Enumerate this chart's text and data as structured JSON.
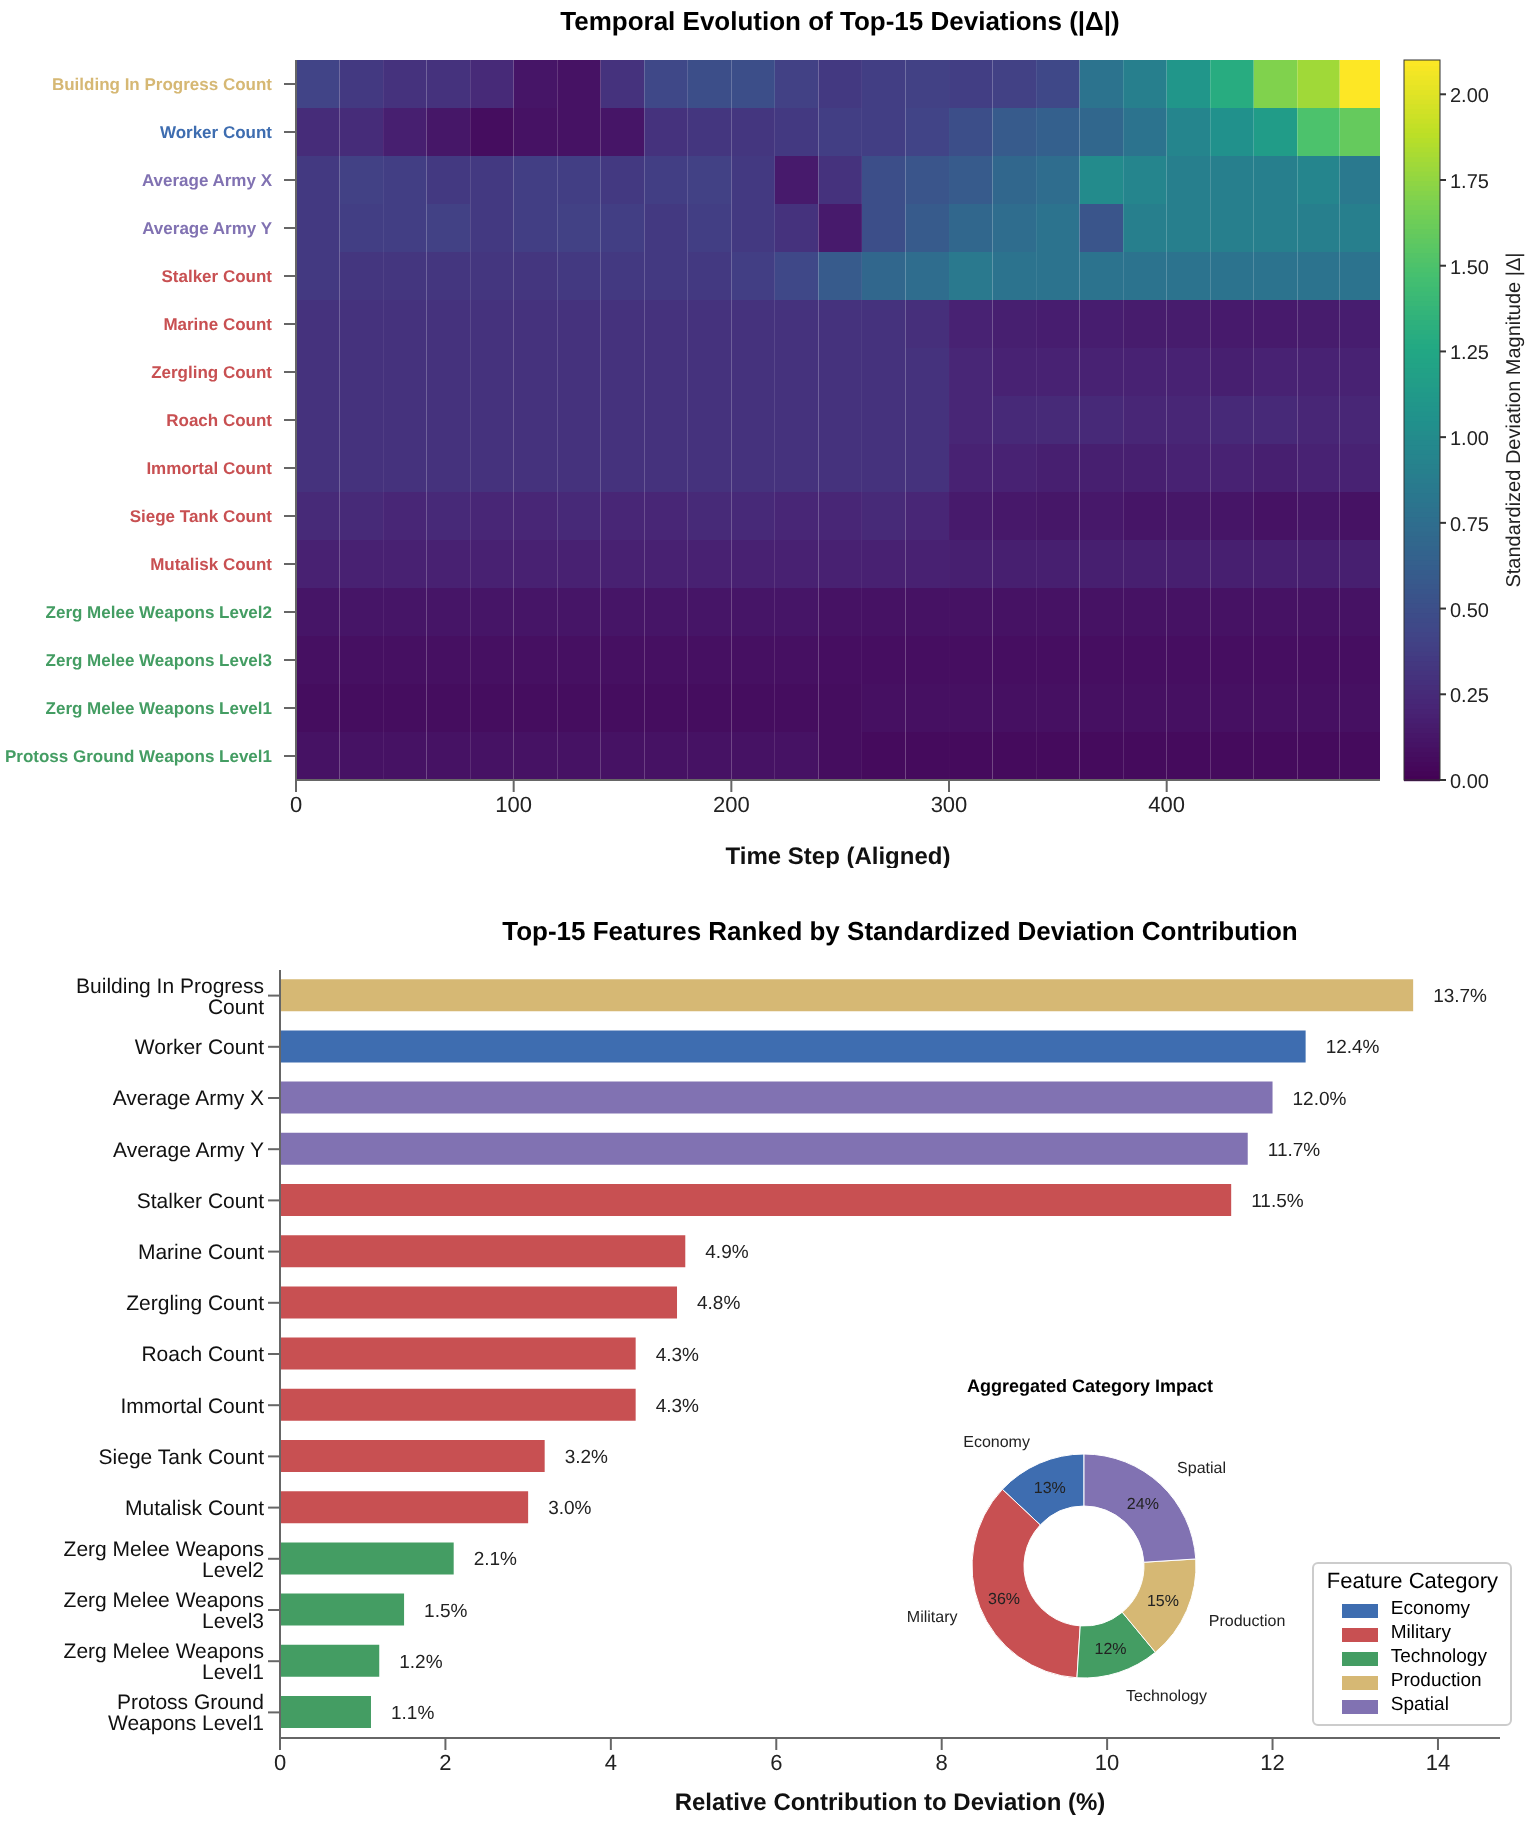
{
  "chart_data": [
    {
      "type": "heatmap",
      "title": "Temporal Evolution of Top-15 Deviations (|Δ|)",
      "xlabel": "Time Step (Aligned)",
      "clabel": "Standardized Deviation Magnitude |Δ|",
      "x": [
        10,
        30,
        50,
        70,
        90,
        110,
        130,
        150,
        170,
        190,
        210,
        230,
        250,
        270,
        290,
        310,
        330,
        350,
        370,
        390,
        410,
        430,
        450,
        470,
        489
      ],
      "xlim": [
        0,
        498
      ],
      "xticks": [
        0,
        100,
        200,
        300,
        400
      ],
      "y_categories": [
        "Building In Progress Count",
        "Worker Count",
        "Average Army X",
        "Average Army Y",
        "Stalker Count",
        "Marine Count",
        "Zergling Count",
        "Roach Count",
        "Immortal Count",
        "Siege Tank Count",
        "Mutalisk Count",
        "Zerg Melee Weapons Level2",
        "Zerg Melee Weapons Level3",
        "Zerg Melee Weapons Level1",
        "Protoss Ground Weapons Level1"
      ],
      "cells": [
        [
          0.42,
          0.35,
          0.3,
          0.3,
          0.25,
          0.12,
          0.1,
          0.3,
          0.45,
          0.5,
          0.5,
          0.4,
          0.35,
          0.38,
          0.4,
          0.38,
          0.4,
          0.45,
          0.8,
          0.9,
          1.1,
          1.3,
          1.7,
          1.8,
          2.1
        ],
        [
          0.26,
          0.26,
          0.18,
          0.13,
          0.07,
          0.1,
          0.1,
          0.12,
          0.3,
          0.33,
          0.33,
          0.35,
          0.38,
          0.38,
          0.42,
          0.5,
          0.6,
          0.64,
          0.7,
          0.8,
          0.95,
          1.05,
          1.15,
          1.5,
          1.6
        ],
        [
          0.35,
          0.4,
          0.38,
          0.35,
          0.35,
          0.38,
          0.38,
          0.35,
          0.38,
          0.4,
          0.35,
          0.15,
          0.3,
          0.5,
          0.55,
          0.6,
          0.7,
          0.75,
          1.0,
          0.95,
          0.9,
          0.9,
          0.9,
          0.95,
          0.85
        ],
        [
          0.35,
          0.38,
          0.38,
          0.4,
          0.35,
          0.38,
          0.4,
          0.38,
          0.35,
          0.38,
          0.35,
          0.3,
          0.15,
          0.5,
          0.6,
          0.7,
          0.75,
          0.8,
          0.55,
          0.9,
          0.9,
          0.9,
          0.9,
          0.9,
          0.9
        ],
        [
          0.35,
          0.33,
          0.33,
          0.33,
          0.33,
          0.33,
          0.35,
          0.35,
          0.35,
          0.35,
          0.38,
          0.45,
          0.6,
          0.7,
          0.75,
          0.85,
          0.8,
          0.8,
          0.8,
          0.8,
          0.8,
          0.8,
          0.8,
          0.8,
          0.8
        ],
        [
          0.3,
          0.3,
          0.3,
          0.3,
          0.3,
          0.3,
          0.3,
          0.3,
          0.3,
          0.3,
          0.3,
          0.3,
          0.3,
          0.3,
          0.28,
          0.2,
          0.18,
          0.17,
          0.17,
          0.16,
          0.16,
          0.15,
          0.15,
          0.16,
          0.17
        ],
        [
          0.3,
          0.3,
          0.3,
          0.3,
          0.3,
          0.3,
          0.3,
          0.3,
          0.3,
          0.3,
          0.3,
          0.3,
          0.3,
          0.3,
          0.3,
          0.22,
          0.2,
          0.2,
          0.2,
          0.2,
          0.2,
          0.18,
          0.2,
          0.2,
          0.2
        ],
        [
          0.3,
          0.3,
          0.3,
          0.3,
          0.3,
          0.3,
          0.3,
          0.3,
          0.3,
          0.3,
          0.3,
          0.3,
          0.3,
          0.3,
          0.3,
          0.22,
          0.24,
          0.25,
          0.24,
          0.22,
          0.22,
          0.24,
          0.24,
          0.22,
          0.22
        ],
        [
          0.3,
          0.3,
          0.3,
          0.3,
          0.3,
          0.3,
          0.3,
          0.3,
          0.3,
          0.3,
          0.3,
          0.3,
          0.3,
          0.3,
          0.3,
          0.2,
          0.2,
          0.18,
          0.18,
          0.18,
          0.2,
          0.2,
          0.18,
          0.2,
          0.2
        ],
        [
          0.25,
          0.25,
          0.22,
          0.24,
          0.22,
          0.22,
          0.24,
          0.22,
          0.22,
          0.25,
          0.24,
          0.22,
          0.22,
          0.25,
          0.22,
          0.15,
          0.14,
          0.13,
          0.14,
          0.12,
          0.13,
          0.12,
          0.1,
          0.12,
          0.1
        ],
        [
          0.19,
          0.19,
          0.19,
          0.19,
          0.19,
          0.19,
          0.19,
          0.19,
          0.19,
          0.19,
          0.19,
          0.19,
          0.19,
          0.19,
          0.19,
          0.18,
          0.18,
          0.18,
          0.18,
          0.18,
          0.18,
          0.18,
          0.18,
          0.18,
          0.18
        ],
        [
          0.12,
          0.12,
          0.12,
          0.12,
          0.12,
          0.12,
          0.12,
          0.12,
          0.12,
          0.12,
          0.12,
          0.12,
          0.1,
          0.1,
          0.1,
          0.1,
          0.1,
          0.1,
          0.1,
          0.1,
          0.1,
          0.1,
          0.1,
          0.1,
          0.1
        ],
        [
          0.09,
          0.09,
          0.09,
          0.09,
          0.09,
          0.09,
          0.09,
          0.09,
          0.09,
          0.09,
          0.09,
          0.09,
          0.08,
          0.08,
          0.08,
          0.08,
          0.08,
          0.08,
          0.08,
          0.08,
          0.08,
          0.08,
          0.08,
          0.08,
          0.08
        ],
        [
          0.07,
          0.07,
          0.07,
          0.07,
          0.07,
          0.07,
          0.07,
          0.07,
          0.07,
          0.07,
          0.07,
          0.07,
          0.07,
          0.09,
          0.09,
          0.09,
          0.09,
          0.09,
          0.09,
          0.09,
          0.09,
          0.09,
          0.09,
          0.09,
          0.09
        ],
        [
          0.1,
          0.1,
          0.1,
          0.1,
          0.1,
          0.1,
          0.1,
          0.1,
          0.1,
          0.1,
          0.1,
          0.1,
          0.07,
          0.06,
          0.06,
          0.06,
          0.06,
          0.06,
          0.06,
          0.06,
          0.06,
          0.06,
          0.06,
          0.06,
          0.06
        ]
      ],
      "clim": [
        0,
        2.1
      ],
      "cticks": [
        {
          "value": 0,
          "label": "0.00"
        },
        {
          "value": 0.25,
          "label": "0.25"
        },
        {
          "value": 0.5,
          "label": "0.50"
        },
        {
          "value": 0.75,
          "label": "0.75"
        },
        {
          "value": 1,
          "label": "1.00"
        },
        {
          "value": 1.25,
          "label": "1.25"
        },
        {
          "value": 1.5,
          "label": "1.50"
        },
        {
          "value": 1.75,
          "label": "1.75"
        },
        {
          "value": 2,
          "label": "2.00"
        }
      ]
    },
    {
      "type": "bar",
      "orientation": "horizontal",
      "title": "Top-15 Features Ranked by Standardized Deviation Contribution",
      "xlabel": "Relative Contribution to Deviation (%)",
      "categories": [
        "Building In Progress Count",
        "Worker Count",
        "Average Army X",
        "Average Army Y",
        "Stalker Count",
        "Marine Count",
        "Zergling Count",
        "Roach Count",
        "Immortal Count",
        "Siege Tank Count",
        "Mutalisk Count",
        "Zerg Melee Weapons Level2",
        "Zerg Melee Weapons Level3",
        "Zerg Melee Weapons Level1",
        "Protoss Ground Weapons Level1"
      ],
      "values": [
        13.7,
        12.4,
        12.0,
        11.7,
        11.5,
        4.9,
        4.8,
        4.3,
        4.3,
        3.2,
        3.0,
        2.1,
        1.5,
        1.2,
        1.1
      ],
      "value_labels": [
        "13.7%",
        "12.4%",
        "12.0%",
        "11.7%",
        "11.5%",
        "4.9%",
        "4.8%",
        "4.3%",
        "4.3%",
        "3.2%",
        "3.0%",
        "2.1%",
        "1.5%",
        "1.2%",
        "1.1%"
      ],
      "colors": [
        "#d6b874",
        "#3e6db0",
        "#8172b2",
        "#8172b2",
        "#c85052",
        "#c85052",
        "#c85052",
        "#c85052",
        "#c85052",
        "#c85052",
        "#c85052",
        "#449d63",
        "#449d63",
        "#449d63",
        "#449d63"
      ],
      "xlim": [
        0,
        14.75
      ],
      "xticks": [
        0,
        2,
        4,
        6,
        8,
        10,
        12,
        14
      ]
    },
    {
      "type": "donut",
      "title": "Aggregated Category Impact",
      "legend_title": "Feature Category",
      "legend": "bottom right",
      "categories": [
        "Economy",
        "Military",
        "Technology",
        "Production",
        "Spatial"
      ],
      "values": [
        13,
        36,
        12,
        15,
        24
      ],
      "value_labels": [
        "13%",
        "36%",
        "12%",
        "15%",
        "24%"
      ],
      "colors": [
        "#3e6db0",
        "#c85052",
        "#449d63",
        "#d6b874",
        "#8172b2"
      ]
    }
  ]
}
